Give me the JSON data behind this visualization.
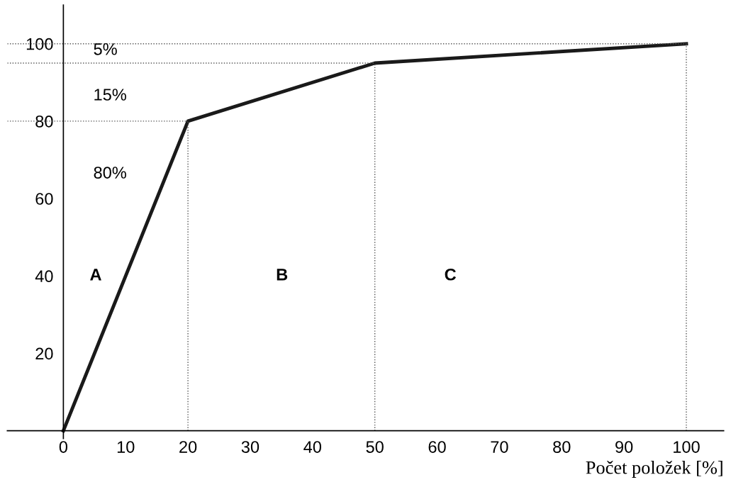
{
  "chart_data": {
    "type": "line",
    "x": [
      0,
      20,
      50,
      100
    ],
    "series": [
      {
        "color": "#1a1a1a",
        "values": [
          0,
          80,
          95,
          100
        ]
      }
    ],
    "xlabel": "Počet položek [%]",
    "xlim": [
      -9,
      106
    ],
    "ylim": [
      -2,
      110
    ],
    "xticks": [
      0,
      10,
      20,
      30,
      40,
      50,
      60,
      70,
      80,
      90,
      100
    ],
    "yticks": [
      20,
      40,
      60,
      80,
      100
    ],
    "ref_lines": [
      {
        "axis": "x",
        "value": 20,
        "line_style": "dotted",
        "color": "#555555"
      },
      {
        "axis": "x",
        "value": 50,
        "line_style": "dotted",
        "color": "#555555"
      },
      {
        "axis": "x",
        "value": 100,
        "line_style": "dotted",
        "color": "#555555"
      },
      {
        "axis": "y",
        "value": 80,
        "line_style": "dotted",
        "color": "#555555"
      },
      {
        "axis": "y",
        "value": 95,
        "line_style": "dotted",
        "color": "#555555"
      },
      {
        "axis": "y",
        "value": 100,
        "line_style": "dotted",
        "color": "#555555"
      }
    ],
    "annotations": [
      "5%",
      "15%",
      "80%",
      "A",
      "B",
      "C"
    ],
    "grid": false,
    "marker": "none",
    "line_style": "solid"
  }
}
